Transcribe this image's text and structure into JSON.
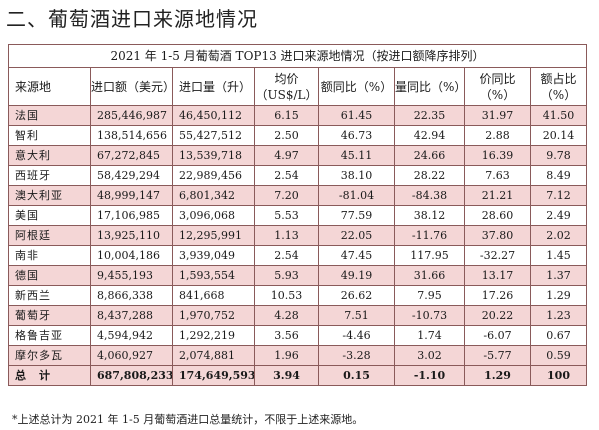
{
  "heading": "二、葡萄酒进口来源地情况",
  "table": {
    "caption": "2021 年 1-5 月葡萄酒 TOP13 进口来源地情况（按进口额降序排列）",
    "headers": {
      "origin": "来源地",
      "import_value": "进口额（美元）",
      "import_volume": "进口量（升）",
      "unit_price": "均价（US$/L）",
      "value_yoy": "额同比（%）",
      "volume_yoy": "量同比（%）",
      "price_yoy": "价同比（%）",
      "share": "额占比（%）"
    },
    "rows": [
      {
        "origin": "法国",
        "import_value": "285,446,987",
        "import_volume": "46,450,112",
        "unit_price": "6.15",
        "value_yoy": "61.45",
        "volume_yoy": "22.35",
        "price_yoy": "31.97",
        "share": "41.50"
      },
      {
        "origin": "智利",
        "import_value": "138,514,656",
        "import_volume": "55,427,512",
        "unit_price": "2.50",
        "value_yoy": "46.73",
        "volume_yoy": "42.94",
        "price_yoy": "2.88",
        "share": "20.14"
      },
      {
        "origin": "意大利",
        "import_value": "67,272,845",
        "import_volume": "13,539,718",
        "unit_price": "4.97",
        "value_yoy": "45.11",
        "volume_yoy": "24.66",
        "price_yoy": "16.39",
        "share": "9.78"
      },
      {
        "origin": "西班牙",
        "import_value": "58,429,294",
        "import_volume": "22,989,456",
        "unit_price": "2.54",
        "value_yoy": "38.10",
        "volume_yoy": "28.22",
        "price_yoy": "7.63",
        "share": "8.49"
      },
      {
        "origin": "澳大利亚",
        "import_value": "48,999,147",
        "import_volume": "6,801,342",
        "unit_price": "7.20",
        "value_yoy": "-81.04",
        "volume_yoy": "-84.38",
        "price_yoy": "21.21",
        "share": "7.12"
      },
      {
        "origin": "美国",
        "import_value": "17,106,985",
        "import_volume": "3,096,068",
        "unit_price": "5.53",
        "value_yoy": "77.59",
        "volume_yoy": "38.12",
        "price_yoy": "28.60",
        "share": "2.49"
      },
      {
        "origin": "阿根廷",
        "import_value": "13,925,110",
        "import_volume": "12,295,991",
        "unit_price": "1.13",
        "value_yoy": "22.05",
        "volume_yoy": "-11.76",
        "price_yoy": "37.80",
        "share": "2.02"
      },
      {
        "origin": "南非",
        "import_value": "10,004,186",
        "import_volume": "3,939,049",
        "unit_price": "2.54",
        "value_yoy": "47.45",
        "volume_yoy": "117.95",
        "price_yoy": "-32.27",
        "share": "1.45"
      },
      {
        "origin": "德国",
        "import_value": "9,455,193",
        "import_volume": "1,593,554",
        "unit_price": "5.93",
        "value_yoy": "49.19",
        "volume_yoy": "31.66",
        "price_yoy": "13.17",
        "share": "1.37"
      },
      {
        "origin": "新西兰",
        "import_value": "8,866,338",
        "import_volume": "841,668",
        "unit_price": "10.53",
        "value_yoy": "26.62",
        "volume_yoy": "7.95",
        "price_yoy": "17.26",
        "share": "1.29"
      },
      {
        "origin": "葡萄牙",
        "import_value": "8,437,288",
        "import_volume": "1,970,752",
        "unit_price": "4.28",
        "value_yoy": "7.51",
        "volume_yoy": "-10.73",
        "price_yoy": "20.22",
        "share": "1.23"
      },
      {
        "origin": "格鲁吉亚",
        "import_value": "4,594,942",
        "import_volume": "1,292,219",
        "unit_price": "3.56",
        "value_yoy": "-4.46",
        "volume_yoy": "1.74",
        "price_yoy": "-6.07",
        "share": "0.67"
      },
      {
        "origin": "摩尔多瓦",
        "import_value": "4,060,927",
        "import_volume": "2,074,881",
        "unit_price": "1.96",
        "value_yoy": "-3.28",
        "volume_yoy": "3.02",
        "price_yoy": "-5.77",
        "share": "0.59"
      }
    ],
    "total": {
      "origin": "总　计",
      "import_value": "687,808,233",
      "import_volume": "174,649,593",
      "unit_price": "3.94",
      "value_yoy": "0.15",
      "volume_yoy": "-1.10",
      "price_yoy": "1.29",
      "share": "100"
    }
  },
  "note": "*上述总计为 2021 年 1-5 月葡萄酒进口总量统计，不限于上述来源地。",
  "colors": {
    "shade": "#f4d6d6",
    "border": "#8a5a5a"
  }
}
